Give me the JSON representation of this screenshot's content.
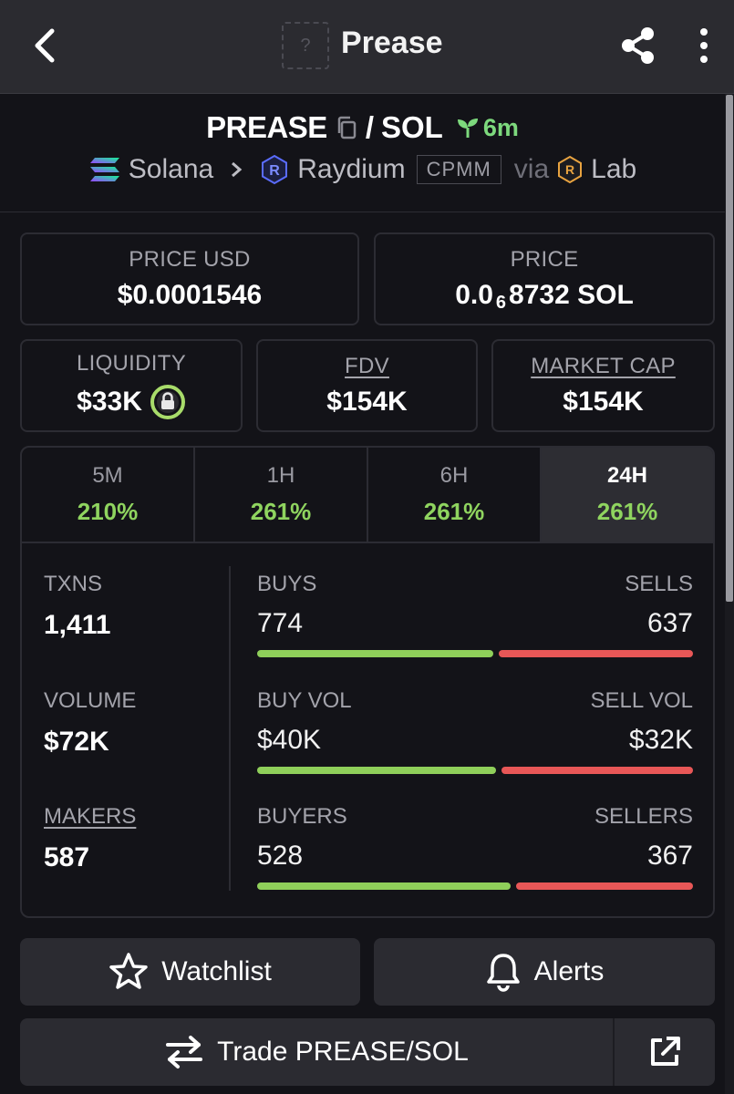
{
  "header": {
    "title": "Prease",
    "logo_placeholder": "?"
  },
  "pair": {
    "base": "PREASE",
    "separator": "/",
    "quote": "SOL",
    "age": "6m",
    "chain": "Solana",
    "dex": "Raydium",
    "pool_type": "CPMM",
    "via_label": "via",
    "via_source": "Lab"
  },
  "cards": {
    "price_usd": {
      "label": "PRICE USD",
      "value": "$0.0001546"
    },
    "price_native": {
      "label": "PRICE",
      "prefix": "0.0",
      "zeros": "6",
      "digits": "8732 SOL"
    },
    "liquidity": {
      "label": "LIQUIDITY",
      "value": "$33K"
    },
    "fdv": {
      "label": "FDV",
      "value": "$154K"
    },
    "market_cap": {
      "label": "MARKET CAP",
      "value": "$154K"
    }
  },
  "timeframes": [
    {
      "label": "5M",
      "change": "210%"
    },
    {
      "label": "1H",
      "change": "261%"
    },
    {
      "label": "6H",
      "change": "261%"
    },
    {
      "label": "24H",
      "change": "261%"
    }
  ],
  "stats": {
    "txns": {
      "label": "TXNS",
      "value": "1,411"
    },
    "volume": {
      "label": "VOLUME",
      "value": "$72K"
    },
    "makers": {
      "label": "MAKERS",
      "value": "587"
    },
    "buys": {
      "label": "BUYS",
      "value": "774"
    },
    "sells": {
      "label": "SELLS",
      "value": "637"
    },
    "buy_vol": {
      "label": "BUY VOL",
      "value": "$40K"
    },
    "sell_vol": {
      "label": "SELL VOL",
      "value": "$32K"
    },
    "buyers": {
      "label": "BUYERS",
      "value": "528"
    },
    "sellers": {
      "label": "SELLERS",
      "value": "367"
    },
    "ratios": {
      "buys": 0.549,
      "buy_vol": 0.556,
      "buyers": 0.59
    }
  },
  "actions": {
    "watchlist": "Watchlist",
    "alerts": "Alerts",
    "trade": "Trade PREASE/SOL"
  },
  "colors": {
    "positive": "#8fd45f",
    "buy_bar": "#8fcf5a",
    "sell_bar": "#e85757",
    "age": "#7dd97d"
  },
  "icons": {
    "back": "back-arrow-icon",
    "share": "share-icon",
    "more": "more-vertical-icon",
    "copy": "copy-icon",
    "seedling": "seedling-icon",
    "solana": "solana-logo-icon",
    "raydium": "raydium-logo-icon",
    "lab": "lab-logo-icon",
    "lock": "lock-icon",
    "star": "star-icon",
    "bell": "bell-icon",
    "swap": "swap-arrows-icon",
    "external": "external-link-icon"
  }
}
